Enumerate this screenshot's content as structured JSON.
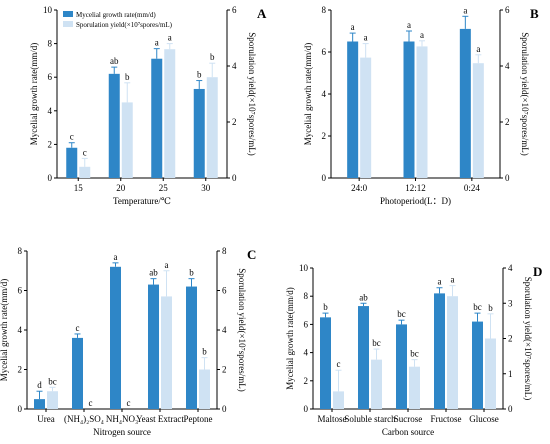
{
  "colors": {
    "growth": "#2E86C7",
    "spore": "#CFE2F3",
    "axis": "#000000"
  },
  "legend": {
    "growth_label": "Mycelial growth rate(mm/d)",
    "spore_label": "Sporulation yield(×10⁷spores/mL)"
  },
  "chart_data": [
    {
      "type": "bar",
      "panel": "A",
      "categories": [
        "15",
        "20",
        "25",
        "30"
      ],
      "xlabel": "Temperature/℃",
      "ylabel_left": "Mycelial growth rate(mm/d)",
      "ylabel_right": "Sporulation yield(×10⁷spores/mL)",
      "ylim_left": [
        0,
        10
      ],
      "yticks_left": [
        "0",
        "2",
        "4",
        "6",
        "8",
        "10"
      ],
      "ylim_right": [
        0,
        6
      ],
      "yticks_right": [
        "0",
        "2",
        "4",
        "6"
      ],
      "series": [
        {
          "name": "Mycelial growth rate(mm/d)",
          "axis": "left",
          "values": [
            1.8,
            6.2,
            7.1,
            5.3
          ],
          "errors": [
            0.3,
            0.4,
            0.6,
            0.5
          ],
          "letters": [
            "c",
            "ab",
            "a",
            "b"
          ]
        },
        {
          "name": "Sporulation yield(×10⁷spores/mL)",
          "axis": "right",
          "values": [
            0.4,
            2.7,
            4.6,
            3.6
          ],
          "errors": [
            0.3,
            0.7,
            0.2,
            0.5
          ],
          "letters": [
            "c",
            "b",
            "a",
            "b"
          ]
        }
      ]
    },
    {
      "type": "bar",
      "panel": "B",
      "categories": [
        "24:0",
        "12:12",
        "0:24"
      ],
      "xlabel": "Photoperiod(L：D)",
      "ylabel_left": "Mycelial growth rate(mm/d)",
      "ylabel_right": "Sporulation yield(×10⁷spores/mL)",
      "ylim_left": [
        0,
        8
      ],
      "yticks_left": [
        "0",
        "2",
        "4",
        "6",
        "8"
      ],
      "ylim_right": [
        0,
        6
      ],
      "yticks_right": [
        "0",
        "2",
        "4",
        "6"
      ],
      "series": [
        {
          "name": "Mycelial growth rate(mm/d)",
          "axis": "left",
          "values": [
            6.5,
            6.5,
            7.1
          ],
          "errors": [
            0.4,
            0.5,
            0.6
          ],
          "letters": [
            "a",
            "a",
            "a"
          ]
        },
        {
          "name": "Sporulation yield(×10⁷spores/mL)",
          "axis": "right",
          "values": [
            4.3,
            4.7,
            4.1
          ],
          "errors": [
            0.5,
            0.2,
            0.3
          ],
          "letters": [
            "a",
            "a",
            "a"
          ]
        }
      ]
    },
    {
      "type": "bar",
      "panel": "C",
      "categories": [
        "Urea",
        "(NH₄)₂SO₄",
        "NH₄NO₃",
        "Yeast Extract",
        "Peptone"
      ],
      "xlabel": "Nitrogen source",
      "ylabel_left": "Mycelial growth rate(mm/d)",
      "ylabel_right": "Sporulation yield(×10⁷spores/mL)",
      "ylim_left": [
        0,
        8
      ],
      "yticks_left": [
        "0",
        "2",
        "4",
        "6",
        "8"
      ],
      "ylim_right": [
        0,
        8
      ],
      "yticks_right": [
        "0",
        "2",
        "4",
        "6",
        "8"
      ],
      "series": [
        {
          "name": "Mycelial growth rate(mm/d)",
          "axis": "left",
          "values": [
            0.5,
            3.6,
            7.2,
            6.3,
            6.2
          ],
          "errors": [
            0.4,
            0.2,
            0.2,
            0.3,
            0.4
          ],
          "letters": [
            "d",
            "c",
            "a",
            "ab",
            "b"
          ]
        },
        {
          "name": "Sporulation yield(×10⁷spores/mL)",
          "axis": "right",
          "values": [
            0.9,
            0.0,
            0.0,
            5.7,
            2.0
          ],
          "errors": [
            0.2,
            0,
            0,
            1.3,
            0.6
          ],
          "letters": [
            "bc",
            "c",
            "c",
            "a",
            "b"
          ]
        }
      ]
    },
    {
      "type": "bar",
      "panel": "D",
      "categories": [
        "Maltose",
        "Soluble starch",
        "Sucrose",
        "Fructose",
        "Glucose"
      ],
      "xlabel": "Carbon source",
      "ylabel_left": "Mycelial growth rate(mm/d)",
      "ylabel_right": "Sporulation yield(×10⁷spores/mL)",
      "ylim_left": [
        0,
        10
      ],
      "yticks_left": [
        "0",
        "2",
        "4",
        "6",
        "8",
        "10"
      ],
      "ylim_right": [
        0,
        4
      ],
      "yticks_right": [
        "0",
        "1",
        "2",
        "3",
        "4"
      ],
      "series": [
        {
          "name": "Mycelial growth rate(mm/d)",
          "axis": "left",
          "values": [
            6.5,
            7.3,
            6.0,
            8.2,
            6.2
          ],
          "errors": [
            0.3,
            0.2,
            0.3,
            0.4,
            0.6
          ],
          "letters": [
            "b",
            "ab",
            "bc",
            "a",
            "bc"
          ]
        },
        {
          "name": "Sporulation yield(×10⁷spores/mL)",
          "axis": "right",
          "values": [
            0.5,
            1.4,
            1.2,
            3.2,
            2.0
          ],
          "errors": [
            0.6,
            0.3,
            0.2,
            0.3,
            0.7
          ],
          "letters": [
            "c",
            "bc",
            "bc",
            "a",
            "b"
          ]
        }
      ]
    }
  ]
}
